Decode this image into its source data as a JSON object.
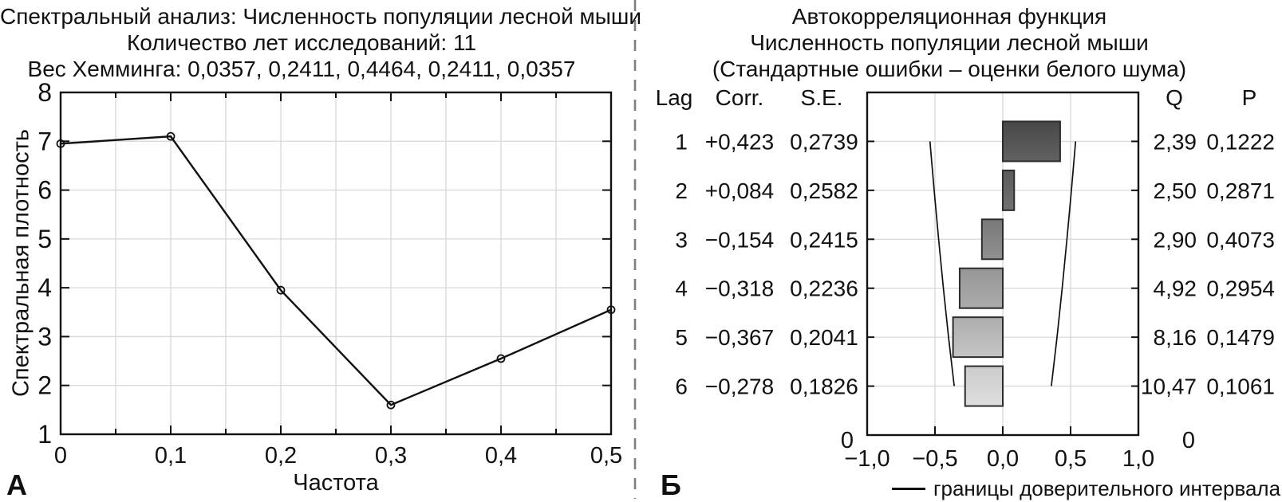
{
  "chart_data": [
    {
      "type": "line",
      "panel_label": "А",
      "title_lines": [
        "Спектральный анализ: Численность популяции лесной мыши",
        "Количество лет исследований: 11",
        "Вес Хемминга: 0,0357, 0,2411, 0,4464, 0,2411, 0,0357"
      ],
      "xlabel": "Частота",
      "ylabel": "Спектральная плотность",
      "x": [
        0,
        0.1,
        0.2,
        0.3,
        0.4,
        0.5
      ],
      "y": [
        6.95,
        7.1,
        3.95,
        1.6,
        2.55,
        3.55
      ],
      "xlim": [
        0,
        0.5
      ],
      "ylim": [
        1,
        8
      ],
      "x_ticks": [
        0,
        0.1,
        0.2,
        0.3,
        0.4,
        0.5
      ],
      "x_tick_labels": [
        "0",
        "0,1",
        "0,2",
        "0,3",
        "0,4",
        "0,5"
      ],
      "x_minor_step": 0.05,
      "y_ticks": [
        1,
        2,
        3,
        4,
        5,
        6,
        7,
        8
      ],
      "y_tick_labels": [
        "1",
        "2",
        "3",
        "4",
        "5",
        "6",
        "7",
        "8"
      ],
      "grid": true,
      "marker": "open-circle",
      "line_color": "#111111",
      "grid_color": "#d8d8d8"
    },
    {
      "type": "bar",
      "orientation": "horizontal",
      "panel_label": "Б",
      "title_lines": [
        "Автокорреляционная функция",
        "Численность популяции лесной мыши",
        "(Стандартные ошибки – оценки белого шума)"
      ],
      "columns": {
        "lag": "Lag",
        "corr": "Corr.",
        "se": "S.E.",
        "q": "Q",
        "p": "P"
      },
      "rows": [
        {
          "lag": "1",
          "corr": 0.423,
          "corr_label": "+0,423",
          "se": "0,2739",
          "ci": 0.537,
          "q": "2,39",
          "p": "0,1222",
          "fill_top": "#484848",
          "fill_bottom": "#616161"
        },
        {
          "lag": "2",
          "corr": 0.084,
          "corr_label": "+0,084",
          "se": "0,2582",
          "ci": 0.506,
          "q": "2,50",
          "p": "0,2871",
          "fill_top": "#5a5a5a",
          "fill_bottom": "#727272"
        },
        {
          "lag": "3",
          "corr": -0.154,
          "corr_label": "−0,154",
          "se": "0,2415",
          "ci": 0.473,
          "q": "2,90",
          "p": "0,4073",
          "fill_top": "#787878",
          "fill_bottom": "#909090"
        },
        {
          "lag": "4",
          "corr": -0.318,
          "corr_label": "−0,318",
          "se": "0,2236",
          "ci": 0.438,
          "q": "4,92",
          "p": "0,2954",
          "fill_top": "#969696",
          "fill_bottom": "#ababab"
        },
        {
          "lag": "5",
          "corr": -0.367,
          "corr_label": "−0,367",
          "se": "0,2041",
          "ci": 0.4,
          "q": "8,16",
          "p": "0,1479",
          "fill_top": "#aeaeae",
          "fill_bottom": "#c4c4c4"
        },
        {
          "lag": "6",
          "corr": -0.278,
          "corr_label": "−0,278",
          "se": "0,1826",
          "ci": 0.358,
          "q": "10,47",
          "p": "0,1061",
          "fill_top": "#cccccc",
          "fill_bottom": "#dedede"
        }
      ],
      "xlim": [
        -1,
        1
      ],
      "x_ticks": [
        -1,
        -0.5,
        0,
        0.5,
        1
      ],
      "x_tick_labels": [
        "−1,0",
        "−0,5",
        "0,0",
        "0,5",
        "1,0"
      ],
      "y_axis_zero_left": "0",
      "y_axis_zero_right": "0",
      "legend_label": "границы доверительного интервала",
      "bar_border_color": "#2d2d2d",
      "line_color": "#111111",
      "grid_color": "#d8d8d8"
    }
  ]
}
